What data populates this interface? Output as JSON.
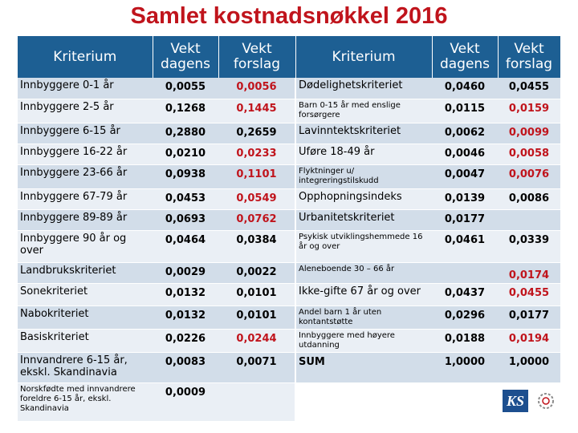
{
  "title": "Samlet kostnadsnøkkel 2016",
  "headers": {
    "kriterium": "Kriterium",
    "vekt_dagens": "Vekt dagens",
    "vekt_forslag": "Vekt forslag"
  },
  "rows": [
    {
      "l": "Innbyggere 0-1 år",
      "ld": "0,0055",
      "lf": "0,0056",
      "r": "Dødelighetskriteriet",
      "rd": "0,0460",
      "rf": "0,0455"
    },
    {
      "l": "Innbyggere 2-5 år",
      "ld": "0,1268",
      "lf": "0,1445",
      "r": "Barn 0-15 år med enslige forsørgere",
      "rd": "0,0115",
      "rf": "0,0159"
    },
    {
      "l": "Innbyggere 6-15 år",
      "ld": "0,2880",
      "lf": "0,2659",
      "r": "Lavinntektskriteriet",
      "rd": "0,0062",
      "rf": "0,0099"
    },
    {
      "l": "Innbyggere 16-22 år",
      "ld": "0,0210",
      "lf": "0,0233",
      "r": "Uføre 18-49 år",
      "rd": "0,0046",
      "rf": "0,0058"
    },
    {
      "l": "Innbyggere 23-66 år",
      "ld": "0,0938",
      "lf": "0,1101",
      "r": "Flyktninger u/ integreringstilskudd",
      "rd": "0,0047",
      "rf": "0,0076"
    },
    {
      "l": "Innbyggere 67-79 år",
      "ld": "0,0453",
      "lf": "0,0549",
      "r": "Opphopningsindeks",
      "rd": "0,0139",
      "rf": "0,0086"
    },
    {
      "l": "Innbyggere 89-89 år",
      "ld": "0,0693",
      "lf": "0,0762",
      "r": "Urbanitetskriteriet",
      "rd": "0,0177",
      "rf": ""
    },
    {
      "l": "Innbyggere 90 år og over",
      "ld": "0,0464",
      "lf": "0,0384",
      "r": "Psykisk utviklingshemmede 16 år og over",
      "rd": "0,0461",
      "rf": "0,0339"
    },
    {
      "l": "Landbrukskriteriet",
      "ld": "0,0029",
      "lf": "0,0022",
      "r": "Aleneboende 30 – 66 år",
      "rd": "",
      "rf": "0,0174"
    },
    {
      "l": "Sonekriteriet",
      "ld": "0,0132",
      "lf": "0,0101",
      "r": "Ikke-gifte 67 år og over",
      "rd": "0,0437",
      "rf": "0,0455"
    },
    {
      "l": "Nabokriteriet",
      "ld": "0,0132",
      "lf": "0,0101",
      "r": "Andel barn 1 år uten kontantstøtte",
      "rd": "0,0296",
      "rf": "0,0177"
    },
    {
      "l": "Basiskriteriet",
      "ld": "0,0226",
      "lf": "0,0244",
      "r": "Innbyggere med høyere utdanning",
      "rd": "0,0188",
      "rf": "0,0194"
    },
    {
      "l": "Innvandrere 6-15 år, ekskl. Skandinavia",
      "ld": "0,0083",
      "lf": "0,0071",
      "r": "SUM",
      "rd": "1,0000",
      "rf": "1,0000"
    },
    {
      "l": "Norskfødte med innvandrere foreldre 6-15 år, ekskl. Skandinavia",
      "ld": "0,0009",
      "lf": "",
      "r": "",
      "rd": "",
      "rf": ""
    }
  ],
  "logo": {
    "text": "KS"
  },
  "colors": {
    "title": "#c0141c",
    "header_bg": "#1d5f93",
    "row_odd": "#d2dde9",
    "row_even": "#eaeff5",
    "forslag_left": "#c0141c"
  }
}
